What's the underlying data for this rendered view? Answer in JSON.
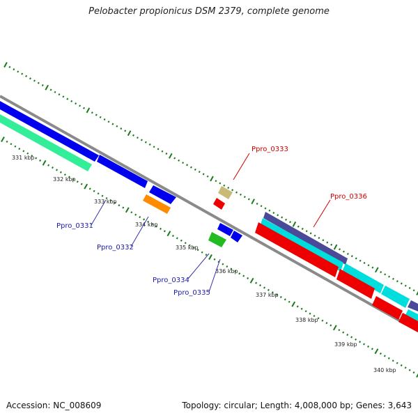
{
  "title": "Pelobacter propionicus DSM 2379, complete genome",
  "footer": {
    "accession": "Accession: NC_008609",
    "summary": "Topology: circular; Length: 4,008,000 bp; Genes: 3,643"
  },
  "scale_labels": [
    "331 kbp",
    "332 kbp",
    "333 kbp",
    "334 kbp",
    "335 kbp",
    "336 kbp",
    "337 kbp",
    "338 kbp",
    "339 kbp",
    "340 kbp"
  ],
  "gene_labels": [
    {
      "text": "Ppro_0331",
      "color": "#1a1aa8"
    },
    {
      "text": "Ppro_0332",
      "color": "#1a1aa8"
    },
    {
      "text": "Ppro_0333",
      "color": "#cc0000"
    },
    {
      "text": "Ppro_0334",
      "color": "#1a1aa8"
    },
    {
      "text": "Ppro_0335",
      "color": "#1a1aa8"
    },
    {
      "text": "Ppro_0336",
      "color": "#cc0000"
    }
  ],
  "colors": {
    "backbone": "#8a8a8a",
    "ticks": "#1a7a1a",
    "forward_cds": "#0000ee",
    "reverse_cds": "#ee0000",
    "orange_feature": "#ff8c00",
    "green_feature": "#22bb22",
    "khaki_feature": "#c8bb78",
    "teal_feature": "#33ee99",
    "cyan_feature": "#00dddd",
    "navy_feature": "#4a4a99"
  }
}
